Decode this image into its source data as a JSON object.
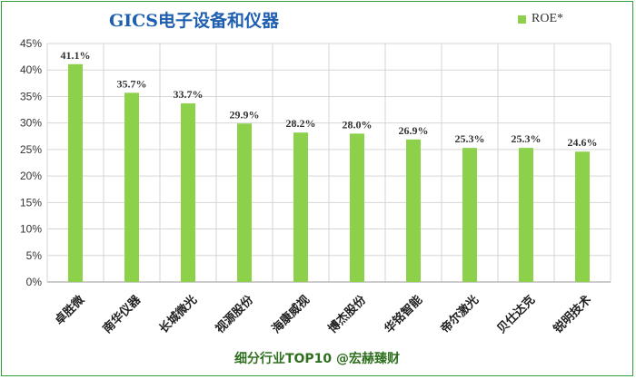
{
  "chart_data": {
    "type": "bar",
    "title": "GICS电子设备和仪器",
    "categories": [
      "卓胜微",
      "南华仪器",
      "长城微光",
      "视源股份",
      "海康威视",
      "博杰股份",
      "华铭智能",
      "帝尔激光",
      "贝仕达克",
      "锐明技术"
    ],
    "series": [
      {
        "name": "ROE*",
        "values": [
          41.1,
          35.7,
          33.7,
          29.9,
          28.2,
          28.0,
          26.9,
          25.3,
          25.3,
          24.6
        ],
        "labels": [
          "41.1%",
          "35.7%",
          "33.7%",
          "29.9%",
          "28.2%",
          "28.0%",
          "26.9%",
          "25.3%",
          "25.3%",
          "24.6%"
        ]
      }
    ],
    "ylim": [
      0,
      45
    ],
    "yticks": [
      "0%",
      "5%",
      "10%",
      "15%",
      "20%",
      "25%",
      "30%",
      "35%",
      "40%",
      "45%"
    ],
    "grid": true,
    "legend": "top-right",
    "xlabel": "",
    "ylabel": ""
  },
  "colors": {
    "bar": "#8dd14a",
    "grid": "#d6d6d6",
    "title": "#1f5fb0",
    "footer": "#2f6f1f",
    "border": "#2e9e3a"
  },
  "footer": {
    "caption": "细分行业TOP10 @宏赫臻财"
  }
}
